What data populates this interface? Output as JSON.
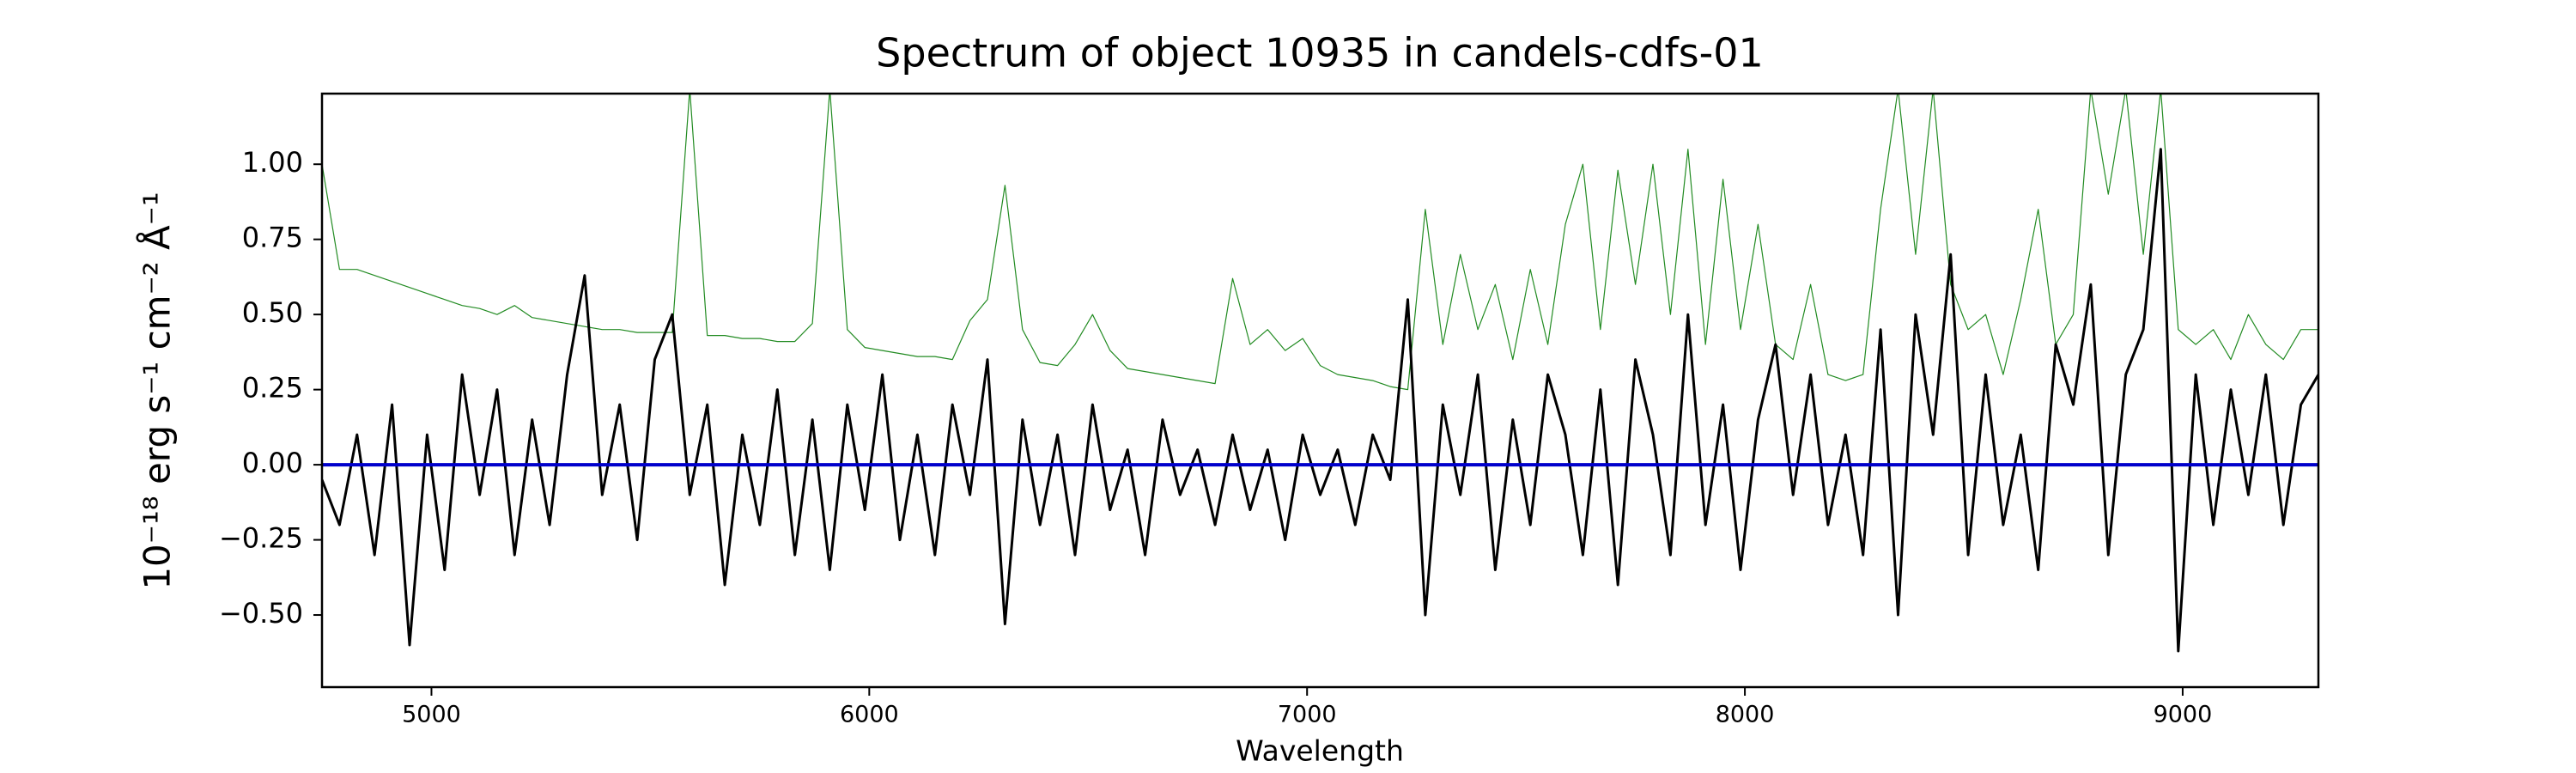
{
  "chart_data": {
    "type": "line",
    "title": "Spectrum of object 10935 in candels-cdfs-01",
    "xlabel": "Wavelength",
    "ylabel": "10⁻¹⁸ erg s⁻¹ cm⁻² Å⁻¹",
    "xlim": [
      4750,
      9310
    ],
    "ylim": [
      -0.74,
      1.235
    ],
    "xticks": [
      5000,
      6000,
      7000,
      8000,
      9000
    ],
    "yticks": [
      {
        "value": -0.5,
        "label": "−0.50"
      },
      {
        "value": -0.25,
        "label": "−0.25"
      },
      {
        "value": 0,
        "label": "0.00"
      },
      {
        "value": 0.25,
        "label": "0.25"
      },
      {
        "value": 0.5,
        "label": "0.50"
      },
      {
        "value": 0.75,
        "label": "0.75"
      },
      {
        "value": 1.0,
        "label": "1.00"
      }
    ],
    "grid": false,
    "series": [
      {
        "color": "#228b22",
        "width": 1.2,
        "x": [
          4750,
          4790,
          4830,
          4870,
          4910,
          4950,
          4990,
          5030,
          5070,
          5110,
          5150,
          5190,
          5230,
          5270,
          5310,
          5350,
          5390,
          5430,
          5470,
          5510,
          5550,
          5590,
          5630,
          5670,
          5710,
          5750,
          5790,
          5830,
          5870,
          5910,
          5950,
          5990,
          6030,
          6070,
          6110,
          6150,
          6190,
          6230,
          6270,
          6310,
          6350,
          6390,
          6430,
          6470,
          6510,
          6550,
          6590,
          6630,
          6670,
          6710,
          6750,
          6790,
          6830,
          6870,
          6910,
          6950,
          6990,
          7030,
          7070,
          7110,
          7150,
          7190,
          7230,
          7270,
          7310,
          7350,
          7390,
          7430,
          7470,
          7510,
          7550,
          7590,
          7630,
          7670,
          7710,
          7750,
          7790,
          7830,
          7870,
          7910,
          7950,
          7990,
          8030,
          8070,
          8110,
          8150,
          8190,
          8230,
          8270,
          8310,
          8350,
          8390,
          8430,
          8470,
          8510,
          8550,
          8590,
          8630,
          8670,
          8710,
          8750,
          8790,
          8830,
          8870,
          8910,
          8950,
          8990,
          9030,
          9070,
          9110,
          9150,
          9190,
          9230,
          9270,
          9310
        ],
        "values": [
          1.0,
          0.65,
          0.65,
          0.63,
          0.61,
          0.59,
          0.57,
          0.55,
          0.53,
          0.52,
          0.5,
          0.53,
          0.49,
          0.48,
          0.47,
          0.46,
          0.45,
          0.45,
          0.44,
          0.44,
          0.44,
          1.25,
          0.43,
          0.43,
          0.42,
          0.42,
          0.41,
          0.41,
          0.47,
          1.25,
          0.45,
          0.39,
          0.38,
          0.37,
          0.36,
          0.36,
          0.35,
          0.48,
          0.55,
          0.93,
          0.45,
          0.34,
          0.33,
          0.4,
          0.5,
          0.38,
          0.32,
          0.31,
          0.3,
          0.29,
          0.28,
          0.27,
          0.62,
          0.4,
          0.45,
          0.38,
          0.42,
          0.33,
          0.3,
          0.29,
          0.28,
          0.26,
          0.25,
          0.85,
          0.4,
          0.7,
          0.45,
          0.6,
          0.35,
          0.65,
          0.4,
          0.8,
          1.0,
          0.45,
          0.98,
          0.6,
          1.0,
          0.5,
          1.05,
          0.4,
          0.95,
          0.45,
          0.8,
          0.4,
          0.35,
          0.6,
          0.3,
          0.28,
          0.3,
          0.85,
          1.25,
          0.7,
          1.25,
          0.6,
          0.45,
          0.5,
          0.3,
          0.55,
          0.85,
          0.4,
          0.5,
          1.25,
          0.9,
          1.25,
          0.7,
          1.25,
          0.45,
          0.4,
          0.45,
          0.35,
          0.5,
          0.4,
          0.35,
          0.45,
          0.45
        ]
      },
      {
        "color": "#000000",
        "width": 3,
        "x": [
          4750,
          4790,
          4830,
          4870,
          4910,
          4950,
          4990,
          5030,
          5070,
          5110,
          5150,
          5190,
          5230,
          5270,
          5310,
          5350,
          5390,
          5430,
          5470,
          5510,
          5550,
          5590,
          5630,
          5670,
          5710,
          5750,
          5790,
          5830,
          5870,
          5910,
          5950,
          5990,
          6030,
          6070,
          6110,
          6150,
          6190,
          6230,
          6270,
          6310,
          6350,
          6390,
          6430,
          6470,
          6510,
          6550,
          6590,
          6630,
          6670,
          6710,
          6750,
          6790,
          6830,
          6870,
          6910,
          6950,
          6990,
          7030,
          7070,
          7110,
          7150,
          7190,
          7230,
          7270,
          7310,
          7350,
          7390,
          7430,
          7470,
          7510,
          7550,
          7590,
          7630,
          7670,
          7710,
          7750,
          7790,
          7830,
          7870,
          7910,
          7950,
          7990,
          8030,
          8070,
          8110,
          8150,
          8190,
          8230,
          8270,
          8310,
          8350,
          8390,
          8430,
          8470,
          8510,
          8550,
          8590,
          8630,
          8670,
          8710,
          8750,
          8790,
          8830,
          8870,
          8910,
          8950,
          8990,
          9030,
          9070,
          9110,
          9150,
          9190,
          9230,
          9270,
          9310
        ],
        "values": [
          -0.05,
          -0.2,
          0.1,
          -0.3,
          0.2,
          -0.6,
          0.1,
          -0.35,
          0.3,
          -0.1,
          0.25,
          -0.3,
          0.15,
          -0.2,
          0.3,
          0.63,
          -0.1,
          0.2,
          -0.25,
          0.35,
          0.5,
          -0.1,
          0.2,
          -0.4,
          0.1,
          -0.2,
          0.25,
          -0.3,
          0.15,
          -0.35,
          0.2,
          -0.15,
          0.3,
          -0.25,
          0.1,
          -0.3,
          0.2,
          -0.1,
          0.35,
          -0.53,
          0.15,
          -0.2,
          0.1,
          -0.3,
          0.2,
          -0.15,
          0.05,
          -0.3,
          0.15,
          -0.1,
          0.05,
          -0.2,
          0.1,
          -0.15,
          0.05,
          -0.25,
          0.1,
          -0.1,
          0.05,
          -0.2,
          0.1,
          -0.05,
          0.55,
          -0.5,
          0.2,
          -0.1,
          0.3,
          -0.35,
          0.15,
          -0.2,
          0.3,
          0.1,
          -0.3,
          0.25,
          -0.4,
          0.35,
          0.1,
          -0.3,
          0.5,
          -0.2,
          0.2,
          -0.35,
          0.15,
          0.4,
          -0.1,
          0.3,
          -0.2,
          0.1,
          -0.3,
          0.45,
          -0.5,
          0.5,
          0.1,
          0.7,
          -0.3,
          0.3,
          -0.2,
          0.1,
          -0.35,
          0.4,
          0.2,
          0.6,
          -0.3,
          0.3,
          0.45,
          1.05,
          -0.62,
          0.3,
          -0.2,
          0.25,
          -0.1,
          0.3,
          -0.2,
          0.2,
          0.3
        ]
      },
      {
        "color": "#0000cc",
        "width": 4,
        "x": [
          4750,
          9310
        ],
        "values": [
          0,
          0
        ]
      }
    ]
  }
}
